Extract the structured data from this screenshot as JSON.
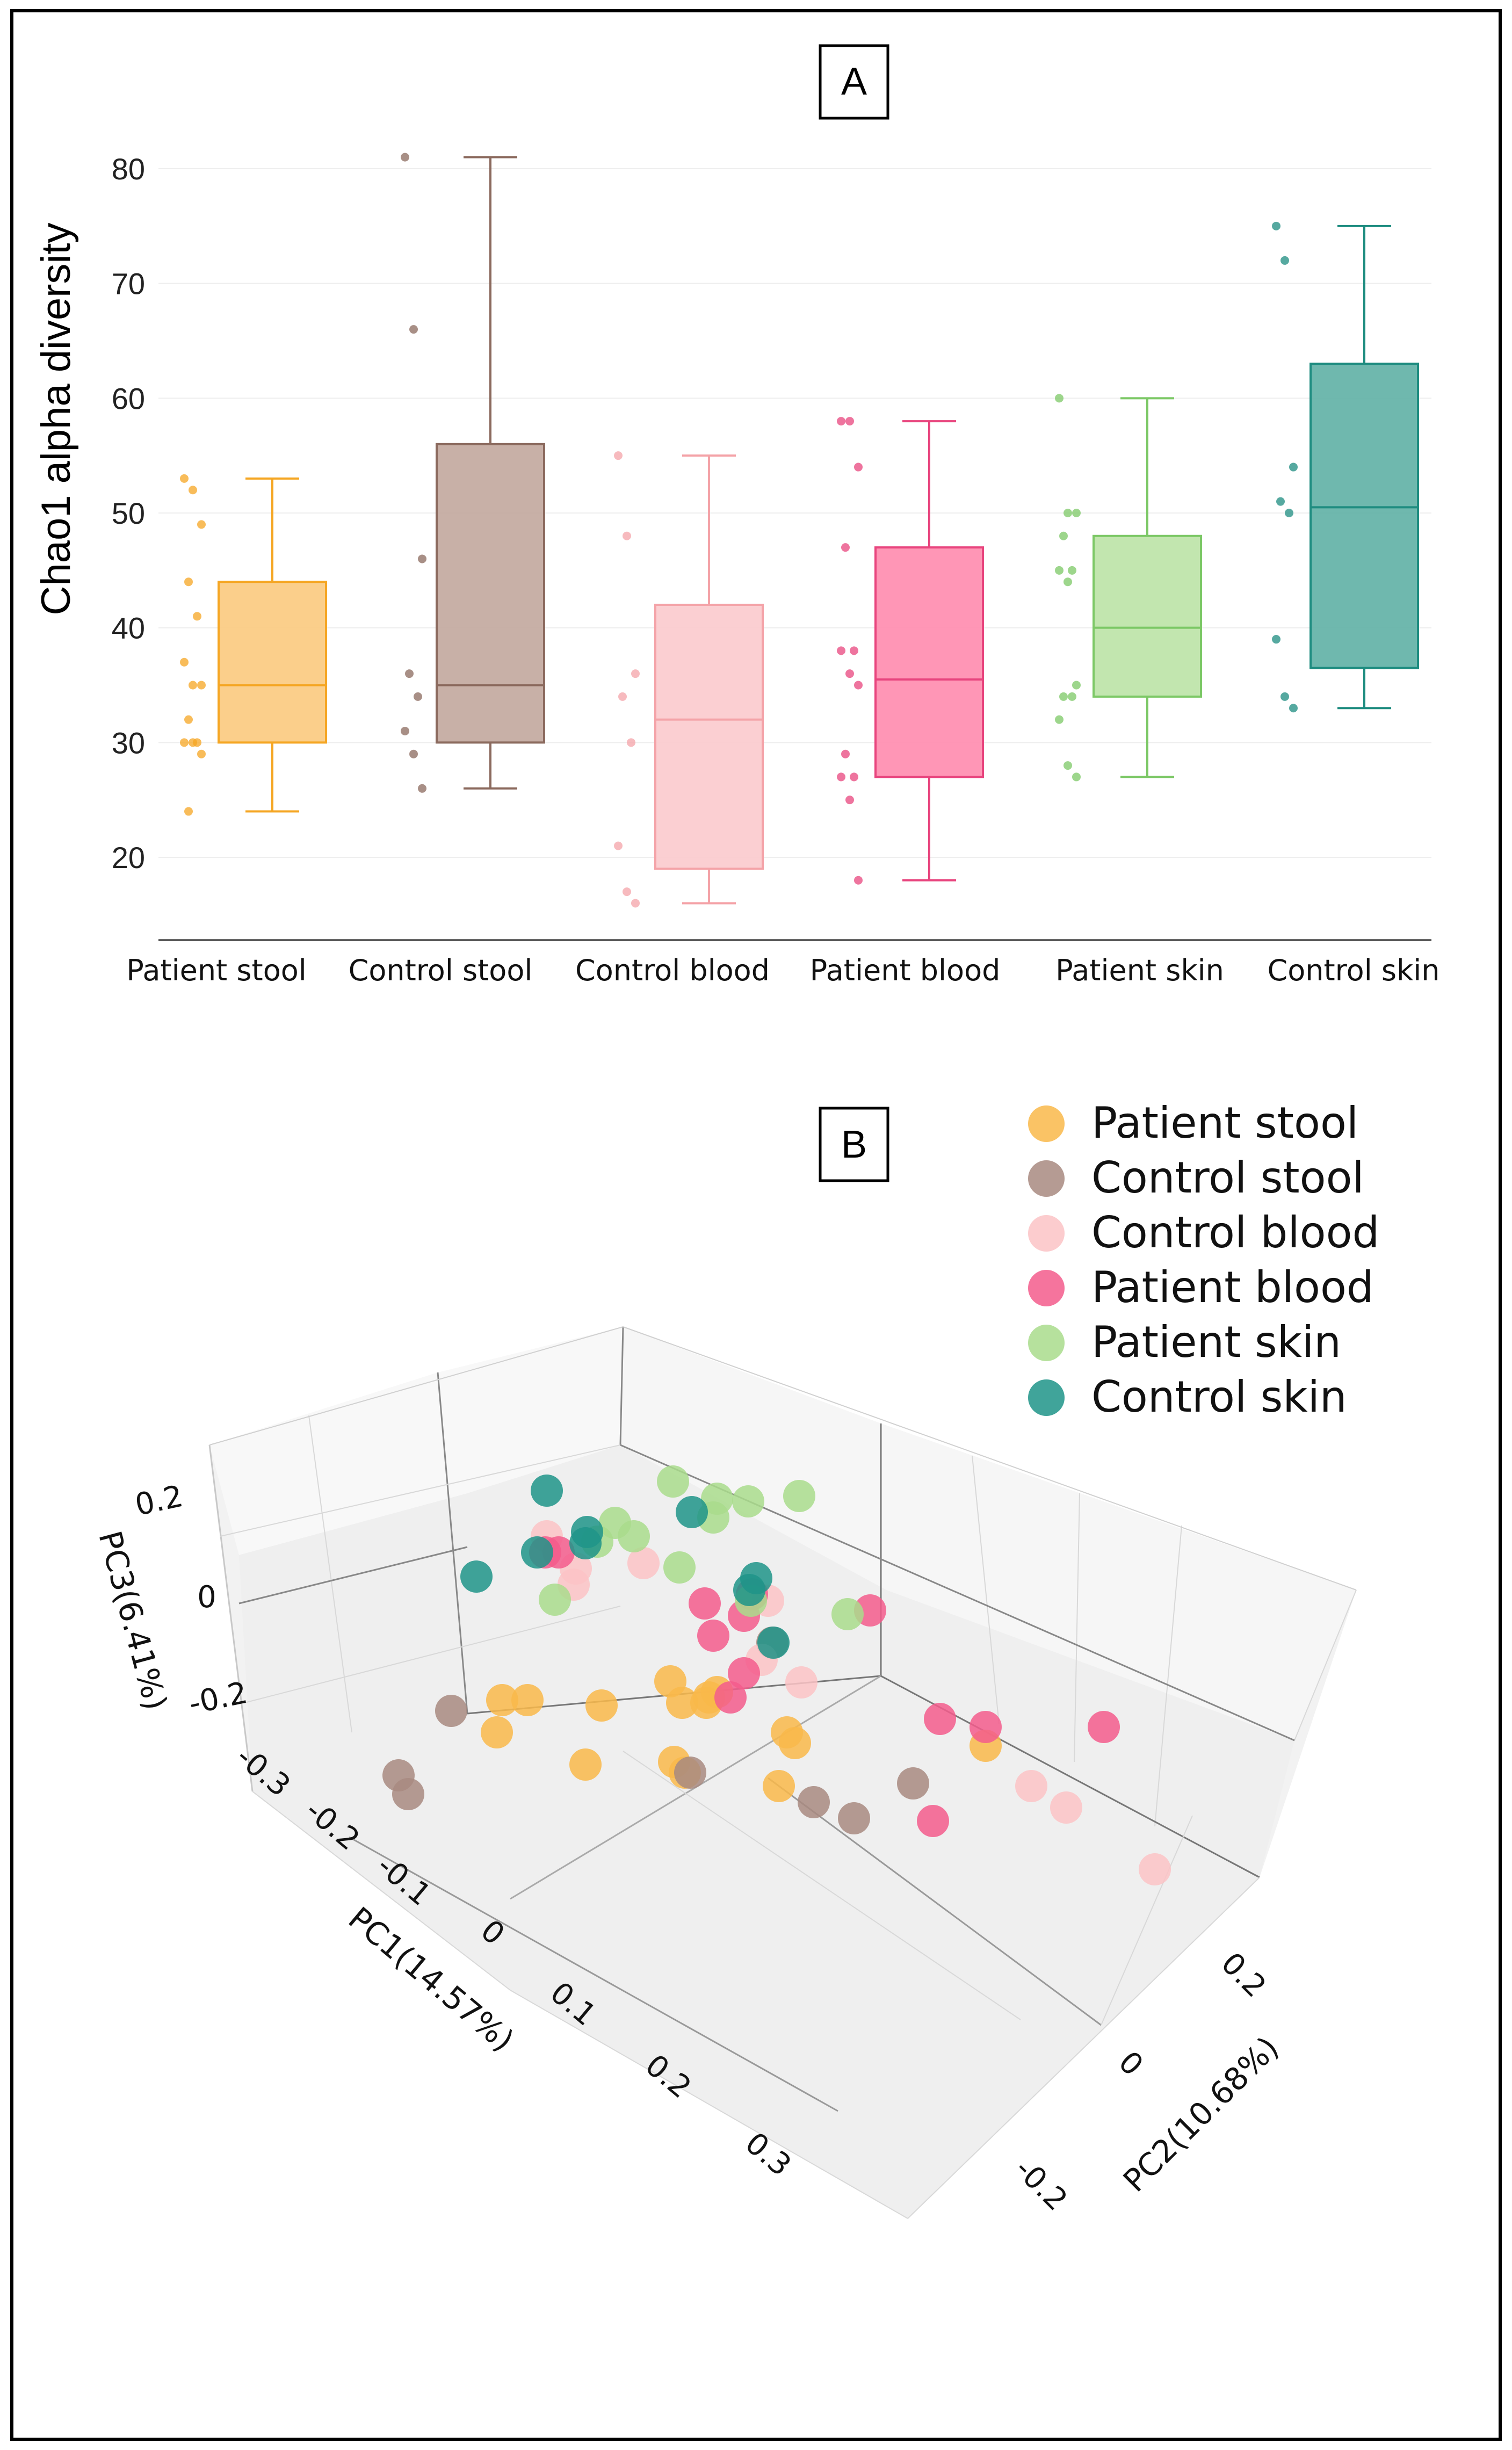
{
  "chart_data": [
    {
      "type": "box",
      "panel": "A",
      "ylabel": "Chao1 alpha diversity",
      "ylim": [
        16,
        83
      ],
      "yticks": [
        20,
        30,
        40,
        50,
        60,
        70,
        80
      ],
      "categories": [
        "Patient stool",
        "Control stool",
        "Control blood",
        "Patient blood",
        "Patient skin",
        "Control skin"
      ],
      "boxes": [
        {
          "name": "Patient stool",
          "min": 24,
          "q1": 30,
          "median": 35,
          "q3": 44,
          "max": 53,
          "color": "#F5A623",
          "fill": "#FBCA7E",
          "points": [
            53,
            52,
            49,
            44,
            41,
            37,
            35,
            35,
            32,
            30,
            30,
            30,
            29,
            24
          ]
        },
        {
          "name": "Control stool",
          "min": 26,
          "q1": 30,
          "median": 35,
          "q3": 56,
          "max": 81,
          "color": "#8B6A5E",
          "fill": "#C2A79D",
          "points": [
            81,
            66,
            46,
            36,
            34,
            31,
            29,
            26
          ]
        },
        {
          "name": "Control blood",
          "min": 16,
          "q1": 19,
          "median": 32,
          "q3": 42,
          "max": 55,
          "color": "#F4A3A8",
          "fill": "#FBCACD",
          "points": [
            55,
            48,
            36,
            34,
            30,
            21,
            17,
            16
          ]
        },
        {
          "name": "Patient blood",
          "min": 18,
          "q1": 27,
          "median": 35.5,
          "q3": 47,
          "max": 58,
          "color": "#E8457E",
          "fill": "#FF8BAE",
          "points": [
            58,
            58,
            54,
            47,
            38,
            38,
            36,
            35,
            29,
            27,
            27,
            25,
            18
          ]
        },
        {
          "name": "Patient skin",
          "min": 27,
          "q1": 34,
          "median": 40,
          "q3": 48,
          "max": 60,
          "color": "#7CC866",
          "fill": "#BBE3A6",
          "points": [
            60,
            50,
            50,
            48,
            45,
            45,
            44,
            35,
            34,
            34,
            32,
            28,
            27
          ]
        },
        {
          "name": "Control skin",
          "min": 33,
          "q1": 36.5,
          "median": 50.5,
          "q3": 63,
          "max": 75,
          "color": "#1E8C80",
          "fill": "#5FB0A5",
          "points": [
            75,
            72,
            54,
            51,
            50,
            39,
            34,
            33
          ]
        }
      ]
    },
    {
      "type": "scatter3d",
      "panel": "B",
      "xlabel": "PC1(14.57%)",
      "ylabel": "PC2(10.68%)",
      "zlabel": "PC3(6.41%)",
      "x_ticks": [
        "-0.3",
        "-0.2",
        "-0.1",
        "0",
        "0.1",
        "0.2",
        "0.3"
      ],
      "y_ticks": [
        "-0.2",
        "0",
        "0.2"
      ],
      "z_ticks": [
        "-0.2",
        "0",
        "0.2"
      ],
      "series": [
        {
          "name": "Patient stool",
          "color": "#F9B84A"
        },
        {
          "name": "Control stool",
          "color": "#A88A80"
        },
        {
          "name": "Control blood",
          "color": "#FCC3C6"
        },
        {
          "name": "Patient blood",
          "color": "#F35C8C"
        },
        {
          "name": "Patient skin",
          "color": "#A9DC8C"
        },
        {
          "name": "Control skin",
          "color": "#1F9488"
        }
      ]
    }
  ],
  "panel_a_label": "A",
  "panel_b_label": "B"
}
